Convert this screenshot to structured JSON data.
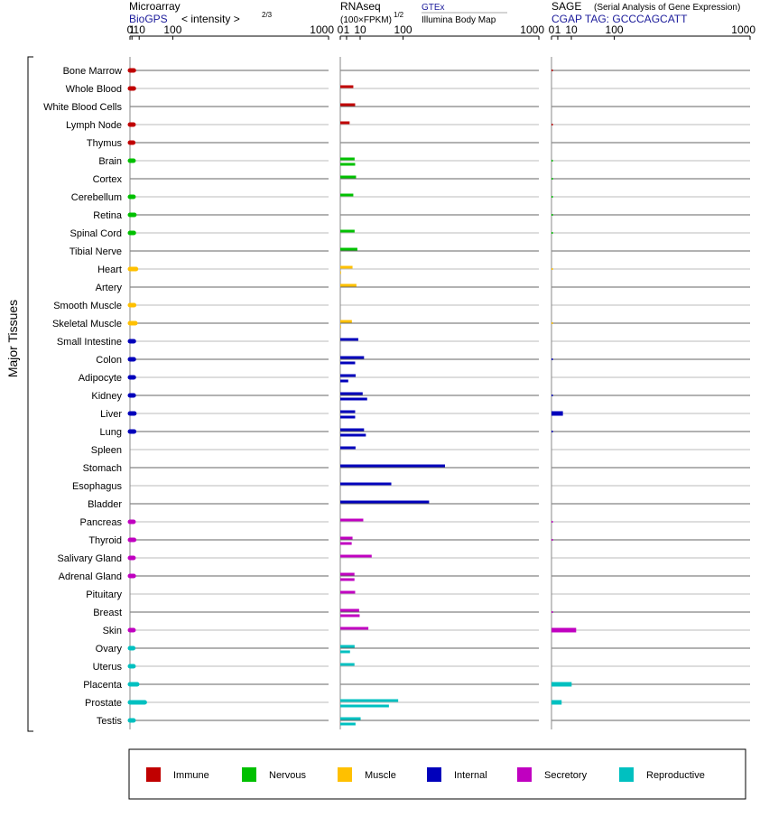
{
  "chart_data": {
    "type": "bar",
    "orientation": "horizontal",
    "x_scale": "root-compressed",
    "x_ticks": [
      "0",
      "1",
      "10",
      "100",
      "1000"
    ],
    "y_axis_label": "Major Tissues",
    "colors": {
      "Immune": "#c00000",
      "Nervous": "#00c000",
      "Muscle": "#ffc000",
      "Internal": "#0000bb",
      "Secretory": "#c000c0",
      "Reproductive": "#00c0c0"
    },
    "panels": {
      "microarray": {
        "title": "Microarray",
        "subtitle_link": "BioGPS",
        "subtitle_text": "< intensity >",
        "subtitle_exp": "2/3"
      },
      "rnaseq": {
        "title": "RNAseq",
        "subtitle_text": "(100×FPKM)",
        "subtitle_exp": "1/2",
        "source_link": "GTEx",
        "source_text": "Illumina Body Map"
      },
      "sage": {
        "title": "SAGE",
        "title_note": "(Serial Analysis of Gene Expression)",
        "tag_link": "CGAP TAG: GCCCAGCATT"
      }
    },
    "tissues": [
      {
        "name": "Bone Marrow",
        "group": "Immune",
        "microarray": 2.7,
        "rnaseq": [],
        "sage": 0.02
      },
      {
        "name": "Whole Blood",
        "group": "Immune",
        "microarray": 2.7,
        "rnaseq": [
          4.3
        ],
        "sage": null
      },
      {
        "name": "White Blood Cells",
        "group": "Immune",
        "microarray": null,
        "rnaseq": [
          5.6
        ],
        "sage": null
      },
      {
        "name": "Lymph Node",
        "group": "Immune",
        "microarray": 2.4,
        "rnaseq": [
          2.2
        ],
        "sage": 0.02
      },
      {
        "name": "Thymus",
        "group": "Immune",
        "microarray": 2.1,
        "rnaseq": [],
        "sage": null
      },
      {
        "name": "Brain",
        "group": "Nervous",
        "microarray": 2.4,
        "rnaseq": [
          5.2,
          5.6
        ],
        "sage": 0.02
      },
      {
        "name": "Cortex",
        "group": "Nervous",
        "microarray": null,
        "rnaseq": [
          6.3
        ],
        "sage": 0.02
      },
      {
        "name": "Cerebellum",
        "group": "Nervous",
        "microarray": 2.4,
        "rnaseq": [
          4.3
        ],
        "sage": 0.02
      },
      {
        "name": "Retina",
        "group": "Nervous",
        "microarray": 3.3,
        "rnaseq": [],
        "sage": 0.02
      },
      {
        "name": "Spinal Cord",
        "group": "Nervous",
        "microarray": 2.7,
        "rnaseq": [
          5.2
        ],
        "sage": 0.02
      },
      {
        "name": "Tibial Nerve",
        "group": "Nervous",
        "microarray": null,
        "rnaseq": [
          7.4
        ],
        "sage": null
      },
      {
        "name": "Heart",
        "group": "Muscle",
        "microarray": 5.3,
        "rnaseq": [
          3.8,
          0.01
        ],
        "sage": 0.01
      },
      {
        "name": "Artery",
        "group": "Muscle",
        "microarray": null,
        "rnaseq": [
          6.6
        ],
        "sage": null
      },
      {
        "name": "Smooth Muscle",
        "group": "Muscle",
        "microarray": 3.0,
        "rnaseq": [],
        "sage": null
      },
      {
        "name": "Skeletal Muscle",
        "group": "Muscle",
        "microarray": 4.5,
        "rnaseq": [
          3.4,
          0.01
        ],
        "sage": 0.01
      },
      {
        "name": "Small Intestine",
        "group": "Internal",
        "microarray": 2.7,
        "rnaseq": [
          8.2
        ],
        "sage": null
      },
      {
        "name": "Colon",
        "group": "Internal",
        "microarray": 2.7,
        "rnaseq": [
          14.3,
          5.6
        ],
        "sage": 0.02
      },
      {
        "name": "Adipocyte",
        "group": "Internal",
        "microarray": 2.7,
        "rnaseq": [
          6.0,
          1.6
        ],
        "sage": null
      },
      {
        "name": "Kidney",
        "group": "Internal",
        "microarray": 2.6,
        "rnaseq": [
          12.7,
          18.3
        ],
        "sage": 0.02
      },
      {
        "name": "Liver",
        "group": "Internal",
        "microarray": 3.3,
        "rnaseq": [
          5.6,
          5.6
        ],
        "sage": 3.3
      },
      {
        "name": "Lung",
        "group": "Internal",
        "microarray": 3.0,
        "rnaseq": [
          14.3,
          16.6
        ],
        "sage": 0.02
      },
      {
        "name": "Spleen",
        "group": "Internal",
        "microarray": null,
        "rnaseq": [
          5.9
        ],
        "sage": null
      },
      {
        "name": "Stomach",
        "group": "Internal",
        "microarray": null,
        "rnaseq": [
          278
        ],
        "sage": null
      },
      {
        "name": "Esophagus",
        "group": "Internal",
        "microarray": null,
        "rnaseq": [
          66
        ],
        "sage": null
      },
      {
        "name": "Bladder",
        "group": "Internal",
        "microarray": null,
        "rnaseq": [
          200
        ],
        "sage": null
      },
      {
        "name": "Pancreas",
        "group": "Secretory",
        "microarray": 2.4,
        "rnaseq": [
          13.4
        ],
        "sage": 0.02
      },
      {
        "name": "Thyroid",
        "group": "Secretory",
        "microarray": 3.0,
        "rnaseq": [
          3.8,
          3.3
        ],
        "sage": 0.02
      },
      {
        "name": "Salivary Gland",
        "group": "Secretory",
        "microarray": 2.4,
        "rnaseq": [
          25
        ],
        "sage": null
      },
      {
        "name": "Adrenal Gland",
        "group": "Secretory",
        "microarray": 2.6,
        "rnaseq": [
          5.1,
          5.1
        ],
        "sage": null
      },
      {
        "name": "Pituitary",
        "group": "Secretory",
        "microarray": null,
        "rnaseq": [
          5.6
        ],
        "sage": null
      },
      {
        "name": "Breast",
        "group": "Secretory",
        "microarray": null,
        "rnaseq": [
          9.0,
          9.5
        ],
        "sage": 0.02
      },
      {
        "name": "Skin",
        "group": "Secretory",
        "microarray": 2.4,
        "rnaseq": [
          20
        ],
        "sage": 15.4
      },
      {
        "name": "Ovary",
        "group": "Reproductive",
        "microarray": 2.1,
        "rnaseq": [
          5.2,
          2.4
        ],
        "sage": null
      },
      {
        "name": "Uterus",
        "group": "Reproductive",
        "microarray": 2.4,
        "rnaseq": [
          5.1
        ],
        "sage": null
      },
      {
        "name": "Placenta",
        "group": "Reproductive",
        "microarray": 6.9,
        "rnaseq": [],
        "sage": 10.3
      },
      {
        "name": "Prostate",
        "group": "Reproductive",
        "microarray": 20.3,
        "rnaseq": [
          85,
          60
        ],
        "sage": 2.6
      },
      {
        "name": "Testis",
        "group": "Reproductive",
        "microarray": 2.4,
        "rnaseq": [
          10.5,
          5.9
        ],
        "sage": null
      }
    ],
    "legend": [
      {
        "label": "Immune",
        "color": "#c00000"
      },
      {
        "label": "Nervous",
        "color": "#00c000"
      },
      {
        "label": "Muscle",
        "color": "#ffc000"
      },
      {
        "label": "Internal",
        "color": "#0000bb"
      },
      {
        "label": "Secretory",
        "color": "#c000c0"
      },
      {
        "label": "Reproductive",
        "color": "#00c0c0"
      }
    ]
  }
}
